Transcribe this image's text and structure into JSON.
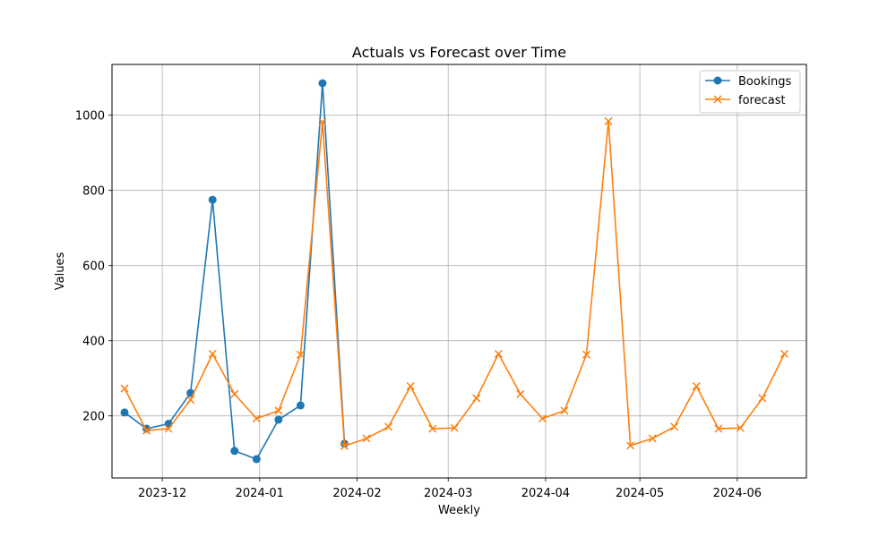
{
  "chart_data": {
    "type": "line",
    "title": "Actuals vs Forecast over Time",
    "xlabel": "Weekly",
    "ylabel": "Values",
    "x_start": "2023-11-19",
    "x_step_days": 7,
    "xlim": [
      "2023-11-15",
      "2024-06-23"
    ],
    "ylim": [
      35,
      1135
    ],
    "x_ticks": [
      "2023-12-01",
      "2024-01-01",
      "2024-02-01",
      "2024-03-01",
      "2024-04-01",
      "2024-05-01",
      "2024-06-01"
    ],
    "x_tick_labels": [
      "2023-12",
      "2024-01",
      "2024-02",
      "2024-03",
      "2024-04",
      "2024-05",
      "2024-06"
    ],
    "y_ticks": [
      200,
      400,
      600,
      800,
      1000
    ],
    "y_tick_labels": [
      "200",
      "400",
      "600",
      "800",
      "1000"
    ],
    "grid": true,
    "legend_position": "top-right",
    "series": [
      {
        "name": "Bookings",
        "color": "#1f77b4",
        "marker": "circle",
        "values": [
          209,
          166,
          179,
          261,
          775,
          107,
          85,
          190,
          228,
          1085,
          126
        ]
      },
      {
        "name": "forecast",
        "color": "#ff7f0e",
        "marker": "x",
        "values": [
          273,
          161,
          166,
          243,
          365,
          258,
          193,
          214,
          363,
          982,
          120,
          140,
          171,
          279,
          166,
          168,
          247,
          365,
          258,
          193,
          214,
          363,
          984,
          121,
          140,
          171,
          279,
          166,
          168,
          247,
          365
        ]
      }
    ]
  }
}
